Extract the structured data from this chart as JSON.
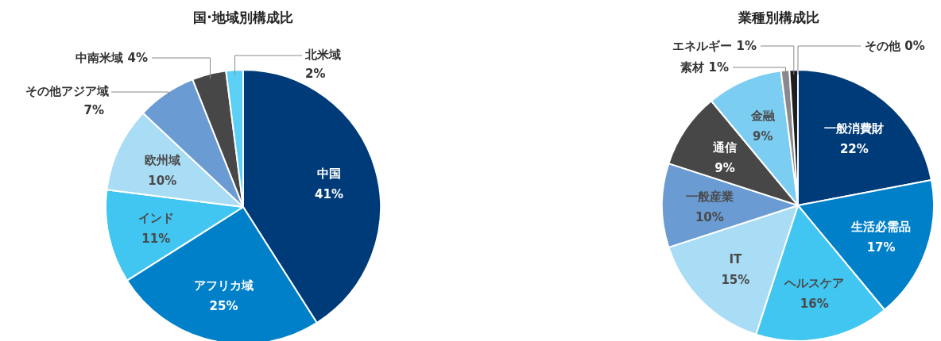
{
  "chart_data": [
    {
      "type": "pie",
      "title": "国·地域別構成比",
      "categories": [
        "中国",
        "アフリカ域",
        "インド",
        "欧州域",
        "その他アジア域",
        "中南米域",
        "北米域"
      ],
      "values": [
        41,
        25,
        11,
        10,
        7,
        4,
        2
      ],
      "value_labels": [
        "41%",
        "25%",
        "11%",
        "10%",
        "7%",
        "4%",
        "2%"
      ],
      "colors": [
        "#003b79",
        "#0080c8",
        "#41c5f1",
        "#a9dcf5",
        "#6a9bd3",
        "#474747",
        "#5ccff4"
      ]
    },
    {
      "type": "pie",
      "title": "業種別構成比",
      "categories": [
        "一般消費財",
        "生活必需品",
        "ヘルスケア",
        "IT",
        "一般産業",
        "通信",
        "金融",
        "素材",
        "エネルギー",
        "その他"
      ],
      "values": [
        22,
        17,
        16,
        15,
        10,
        9,
        9,
        1,
        1,
        0
      ],
      "value_labels": [
        "22%",
        "17%",
        "16%",
        "15%",
        "10%",
        "9%",
        "9%",
        "1%",
        "1%",
        "0%"
      ],
      "colors": [
        "#003b79",
        "#0080c8",
        "#41c5f1",
        "#a9dcf5",
        "#6a9bd3",
        "#474747",
        "#7ccdf2",
        "#8a8a8a",
        "#1f1f1f",
        "#000000"
      ]
    }
  ]
}
